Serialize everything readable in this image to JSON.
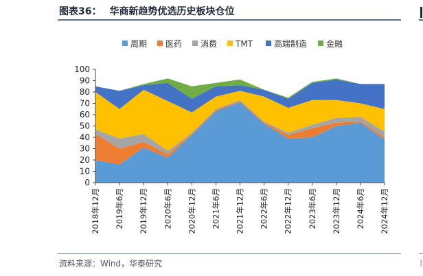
{
  "header": {
    "title_prefix": "图表36：",
    "title_text": "华商新趋势优选历史板块仓位"
  },
  "footer": {
    "source": "资料来源：Wind，华泰研究"
  },
  "chart_data": {
    "type": "area",
    "stacked": true,
    "title": "",
    "xlabel": "",
    "ylabel": "",
    "ylim": [
      0,
      100
    ],
    "yticks": [
      0,
      10,
      20,
      30,
      40,
      50,
      60,
      70,
      80,
      90,
      100
    ],
    "grid": false,
    "legend_position": "top",
    "categories": [
      "2018年12月",
      "2019年6月",
      "2019年12月",
      "2020年6月",
      "2020年12月",
      "2021年6月",
      "2021年12月",
      "2022年6月",
      "2022年12月",
      "2023年6月",
      "2023年12月",
      "2024年6月",
      "2024年12月"
    ],
    "series": [
      {
        "name": "周期",
        "color": "#5b9bd5",
        "values": [
          20,
          16,
          31,
          22,
          42,
          63,
          71,
          52,
          39,
          40,
          50,
          53,
          38
        ]
      },
      {
        "name": "医药",
        "color": "#ed7d31",
        "values": [
          23,
          14,
          5,
          3,
          1,
          1,
          1,
          1,
          3,
          8,
          3,
          1,
          2
        ]
      },
      {
        "name": "消费",
        "color": "#a5a5a5",
        "values": [
          4,
          9,
          7,
          3,
          1,
          1,
          1,
          1,
          2,
          3,
          4,
          4,
          5
        ]
      },
      {
        "name": "TMT",
        "color": "#ffc000",
        "values": [
          33,
          26,
          39,
          44,
          18,
          11,
          8,
          22,
          22,
          22,
          16,
          12,
          20
        ]
      },
      {
        "name": "高端制造",
        "color": "#4472c4",
        "values": [
          5,
          16,
          4,
          16,
          12,
          9,
          5,
          6,
          8,
          15,
          18,
          17,
          22
        ]
      },
      {
        "name": "金融",
        "color": "#70ad47",
        "values": [
          0,
          0,
          1,
          4,
          11,
          3,
          5,
          0,
          1,
          1,
          1,
          0,
          0
        ]
      }
    ]
  }
}
